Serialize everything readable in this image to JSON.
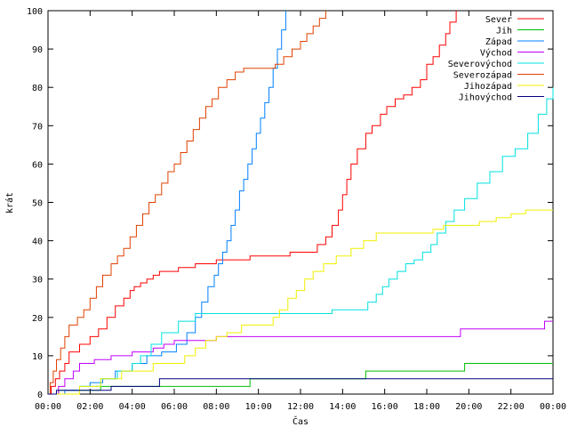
{
  "chart_data": {
    "type": "line",
    "step": true,
    "xlabel": "Čas",
    "ylabel": "krát",
    "xlim": [
      0,
      24
    ],
    "ylim": [
      0,
      100
    ],
    "grid": false,
    "legend_position": "top-right",
    "x_ticks": [
      "00:00",
      "02:00",
      "04:00",
      "06:00",
      "08:00",
      "10:00",
      "12:00",
      "14:00",
      "16:00",
      "18:00",
      "20:00",
      "22:00",
      "00:00"
    ],
    "y_ticks": [
      0,
      10,
      20,
      30,
      40,
      50,
      60,
      70,
      80,
      90,
      100
    ],
    "series": [
      {
        "name": "Sever",
        "color": "#ff0000",
        "x": [
          0,
          0.15,
          0.35,
          0.55,
          0.8,
          1.0,
          1.5,
          2.0,
          2.4,
          2.8,
          3.2,
          3.6,
          3.9,
          4.1,
          4.4,
          4.7,
          5.0,
          5.3,
          6.2,
          7.0,
          7.4,
          8.0,
          9.0,
          9.6,
          10.5,
          11.5,
          12.3,
          12.8,
          13.2,
          13.5,
          13.8,
          14.0,
          14.2,
          14.4,
          14.7,
          15.1,
          15.4,
          15.8,
          16.1,
          16.5,
          16.9,
          17.3,
          17.7,
          18.0,
          18.3,
          18.6,
          18.9,
          19.1,
          19.4
        ],
        "y": [
          0,
          2,
          4,
          6,
          8,
          11,
          13,
          15,
          17,
          20,
          23,
          25,
          27,
          28,
          29,
          30,
          31,
          32,
          33,
          34,
          34,
          35,
          35,
          36,
          36,
          37,
          37,
          39,
          41,
          44,
          48,
          52,
          56,
          60,
          64,
          68,
          70,
          73,
          75,
          77,
          78,
          80,
          82,
          86,
          88,
          91,
          94,
          97,
          100
        ]
      },
      {
        "name": "Jih",
        "color": "#00c000",
        "x": [
          0,
          0.5,
          1.0,
          2.5,
          4.0,
          5.5,
          6.5,
          8.0,
          9.6,
          12.0,
          14.0,
          15.1,
          17.0,
          19.0,
          19.8,
          21.5,
          24
        ],
        "y": [
          0,
          1,
          1,
          2,
          2,
          2,
          2,
          2,
          4,
          4,
          4,
          6,
          6,
          6,
          8,
          8,
          8
        ]
      },
      {
        "name": "Západ",
        "color": "#0080ff",
        "x": [
          0,
          0.8,
          1.5,
          2.0,
          2.6,
          3.2,
          4.0,
          4.7,
          5.4,
          6.1,
          6.6,
          7.0,
          7.3,
          7.6,
          7.9,
          8.1,
          8.3,
          8.5,
          8.7,
          8.9,
          9.1,
          9.3,
          9.5,
          9.7,
          9.9,
          10.1,
          10.3,
          10.5,
          10.7,
          10.9,
          11.1,
          11.3
        ],
        "y": [
          0,
          1,
          2,
          3,
          4,
          6,
          8,
          10,
          11,
          13,
          16,
          20,
          24,
          28,
          31,
          34,
          37,
          40,
          44,
          48,
          53,
          56,
          60,
          64,
          68,
          72,
          76,
          80,
          85,
          90,
          95,
          100
        ]
      },
      {
        "name": "Východ",
        "color": "#c000ff",
        "x": [
          0,
          0.5,
          0.8,
          1.2,
          1.5,
          2.2,
          3.0,
          4.0,
          5.0,
          5.5,
          6.0,
          8.0,
          12.0,
          16.0,
          19.2,
          19.6,
          22.0,
          23.6,
          24
        ],
        "y": [
          0,
          2,
          4,
          6,
          8,
          9,
          10,
          11,
          12,
          13,
          14,
          15,
          15,
          15,
          15,
          17,
          17,
          19,
          19
        ]
      },
      {
        "name": "Severovýchod",
        "color": "#00e0e0",
        "x": [
          0,
          1.5,
          2.5,
          3.3,
          4.0,
          4.4,
          4.9,
          5.4,
          6.2,
          7.0,
          8.5,
          10.0,
          12.0,
          13.5,
          15.2,
          15.6,
          15.9,
          16.2,
          16.6,
          17.0,
          17.4,
          17.8,
          18.2,
          18.5,
          18.9,
          19.3,
          19.8,
          20.4,
          21.0,
          21.6,
          22.2,
          22.8,
          23.3,
          23.7,
          24
        ],
        "y": [
          0,
          2,
          4,
          6,
          8,
          10,
          13,
          16,
          19,
          21,
          21,
          21,
          21,
          22,
          24,
          26,
          28,
          30,
          32,
          34,
          35,
          37,
          39,
          42,
          45,
          48,
          51,
          55,
          58,
          62,
          64,
          68,
          73,
          77,
          80
        ]
      },
      {
        "name": "Severozápad",
        "color": "#e04000",
        "x": [
          0,
          0.1,
          0.25,
          0.4,
          0.6,
          0.8,
          1.0,
          1.4,
          1.7,
          2.0,
          2.3,
          2.6,
          3.0,
          3.3,
          3.6,
          3.9,
          4.2,
          4.5,
          4.8,
          5.1,
          5.4,
          5.7,
          6.0,
          6.3,
          6.6,
          6.9,
          7.2,
          7.5,
          7.8,
          8.1,
          8.5,
          8.9,
          9.3,
          9.8,
          10.4,
          10.8,
          11.2,
          11.6,
          12.0,
          12.3,
          12.6,
          12.9,
          13.2
        ],
        "y": [
          0,
          3,
          6,
          9,
          12,
          15,
          18,
          20,
          22,
          25,
          28,
          31,
          34,
          36,
          38,
          41,
          44,
          47,
          50,
          52,
          55,
          58,
          60,
          63,
          66,
          69,
          72,
          75,
          77,
          80,
          82,
          84,
          85,
          85,
          85,
          86,
          88,
          90,
          92,
          94,
          96,
          98,
          100
        ]
      },
      {
        "name": "Jihozápad",
        "color": "#f0f000",
        "x": [
          0,
          1.5,
          2.5,
          3.5,
          5.0,
          6.5,
          7.0,
          7.5,
          8.0,
          8.5,
          9.2,
          10.7,
          11.0,
          11.4,
          11.8,
          12.2,
          12.6,
          13.1,
          13.7,
          14.4,
          15.0,
          15.6,
          16.2,
          17.0,
          17.8,
          18.3,
          18.8,
          19.4,
          20.5,
          21.3,
          22.0,
          22.7,
          24
        ],
        "y": [
          0,
          2,
          4,
          6,
          8,
          10,
          12,
          14,
          15,
          16,
          18,
          20,
          22,
          25,
          27,
          30,
          32,
          34,
          36,
          38,
          40,
          42,
          42,
          42,
          42,
          43,
          44,
          44,
          45,
          46,
          47,
          48,
          48
        ]
      },
      {
        "name": "Jihovýchod",
        "color": "#000080",
        "x": [
          0,
          0.4,
          0.8,
          1.2,
          1.6,
          2.5,
          3.0,
          4.0,
          5.3,
          6.0,
          8.0,
          12.0,
          16.0,
          20.0,
          24
        ],
        "y": [
          0,
          1,
          1,
          1,
          1,
          1,
          2,
          2,
          4,
          4,
          4,
          4,
          4,
          4,
          4
        ]
      }
    ]
  }
}
